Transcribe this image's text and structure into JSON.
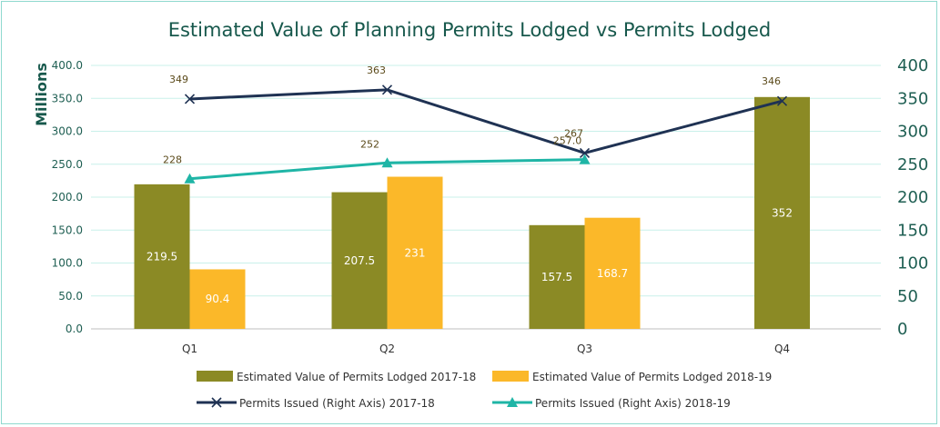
{
  "chart_data": {
    "type": "bar",
    "title": "Estimated Value of Planning Permits Lodged vs Permits Lodged",
    "ylabel": "Millions",
    "categories": [
      "Q1",
      "Q2",
      "Q3",
      "Q4"
    ],
    "ylim_left": [
      0,
      400
    ],
    "ylim_right": [
      0,
      400
    ],
    "left_ticks": [
      "0.0",
      "50.0",
      "100.0",
      "150.0",
      "200.0",
      "250.0",
      "300.0",
      "350.0",
      "400.0"
    ],
    "right_ticks": [
      "0",
      "50",
      "100",
      "150",
      "200",
      "250",
      "300",
      "350",
      "400"
    ],
    "grid": true,
    "legend_position": "bottom",
    "bar_series": [
      {
        "name": "Estimated Value of Permits Lodged 2017-18",
        "color": "#8b8a25",
        "values": [
          219.5,
          207.5,
          157.5,
          352
        ],
        "labels": [
          "219.5",
          "207.5",
          "157.5",
          "352"
        ]
      },
      {
        "name": "Estimated Value of Permits Lodged 2018-19",
        "color": "#fbb829",
        "values": [
          90.4,
          231,
          168.7,
          null
        ],
        "labels": [
          "90.4",
          "231",
          "168.7",
          ""
        ]
      }
    ],
    "line_series": [
      {
        "name": "Permits Issued (Right Axis) 2017-18",
        "color": "#1f3253",
        "marker": "x",
        "values": [
          349,
          363,
          267,
          346
        ],
        "labels": [
          "349",
          "363",
          "267",
          "346"
        ]
      },
      {
        "name": "Permits Issued (Right Axis) 2018-19",
        "color": "#1fb5a6",
        "marker": "triangle",
        "values": [
          228,
          252,
          257,
          null
        ],
        "labels": [
          "228",
          "252",
          "257.0",
          ""
        ]
      }
    ]
  }
}
